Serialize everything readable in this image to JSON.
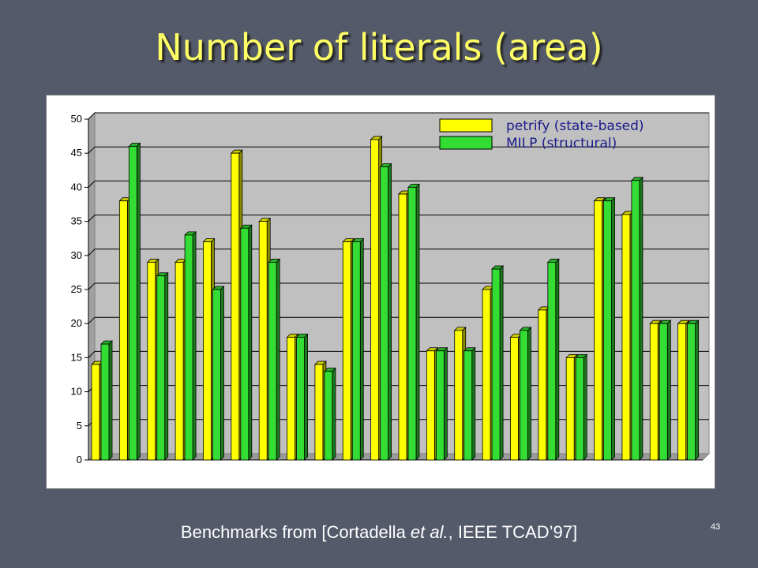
{
  "slide": {
    "title": "Number of literals (area)",
    "footer_prefix": "Benchmarks from [Cortadella ",
    "footer_italic": "et al.",
    "footer_suffix": ", IEEE TCAD’97]",
    "page_number": "43"
  },
  "colors": {
    "background": "#545a6a",
    "title": "#ffff66",
    "series1": "#ffff00",
    "series2": "#33dd33",
    "plot_area": "#c0c0c0",
    "legend_text": "#1a1a8c"
  },
  "chart_data": {
    "type": "bar",
    "title": "",
    "xlabel": "",
    "ylabel": "",
    "ylim": [
      0,
      50
    ],
    "yticks": [
      0,
      5,
      10,
      15,
      20,
      25,
      30,
      35,
      40,
      45,
      50
    ],
    "grid": true,
    "legend_position": "top-right",
    "categories": [
      "",
      "",
      "",
      "",
      "",
      "",
      "",
      "",
      "",
      "",
      "",
      "",
      "",
      "",
      "",
      "",
      "",
      "",
      "",
      "",
      "",
      ""
    ],
    "series": [
      {
        "name": "petrify (state-based)",
        "values": [
          14,
          38,
          29,
          29,
          32,
          45,
          35,
          18,
          14,
          32,
          47,
          39,
          16,
          19,
          25,
          18,
          22,
          15,
          38,
          36,
          20,
          20
        ]
      },
      {
        "name": "MILP (structural)",
        "values": [
          17,
          46,
          27,
          33,
          25,
          34,
          29,
          18,
          13,
          32,
          43,
          40,
          16,
          16,
          28,
          19,
          29,
          15,
          38,
          41,
          20,
          20
        ]
      }
    ]
  }
}
